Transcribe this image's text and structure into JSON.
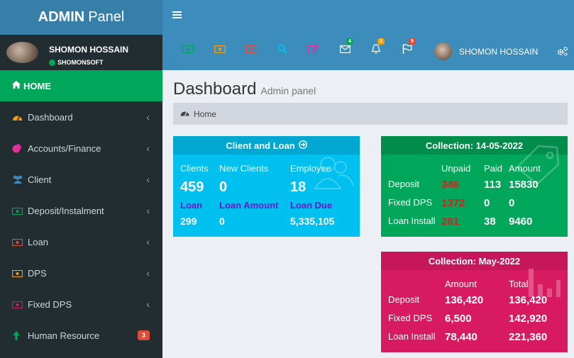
{
  "app": {
    "brand_bold": "ADMIN",
    "brand_light": "Panel"
  },
  "user": {
    "name": "SHOMON HOSSAIN",
    "status": "SHOMONSOFT"
  },
  "sidebar": {
    "home_label": "HOME",
    "items": [
      {
        "label": "Dashboard",
        "icon": "dashboard-icon",
        "color": "#f39c12"
      },
      {
        "label": "Accounts/Finance",
        "icon": "pie-chart-icon",
        "color": "#e62ea0"
      },
      {
        "label": "Client",
        "icon": "users-icon",
        "color": "#3c8dbc"
      },
      {
        "label": "Deposit/Instalment",
        "icon": "money-icon",
        "color": "#00a65a"
      },
      {
        "label": "Loan",
        "icon": "money-icon",
        "color": "#dd4b39"
      },
      {
        "label": "DPS",
        "icon": "money-icon",
        "color": "#f39c12"
      },
      {
        "label": "Fixed DPS",
        "icon": "money-icon",
        "color": "#d81b60"
      },
      {
        "label": "Human Resource",
        "icon": "arrow-up-icon",
        "color": "#00a65a",
        "badge": "3"
      }
    ]
  },
  "header": {
    "user_name": "SHOMON HOSSAIN",
    "icons": [
      {
        "name": "money-green-icon",
        "color": "#00a65a"
      },
      {
        "name": "money-orange-icon",
        "color": "#f39c12"
      },
      {
        "name": "money-red-icon",
        "color": "#dd4b39"
      },
      {
        "name": "search-icon",
        "color": "#00c0ef"
      },
      {
        "name": "edit-icon",
        "color": "#e62ea0"
      },
      {
        "name": "envelope-icon",
        "color": "#ffffff",
        "badge": "4",
        "badge_color": "#00a65a"
      },
      {
        "name": "bell-icon",
        "color": "#ffffff",
        "badge": "2",
        "badge_color": "#f39c12"
      },
      {
        "name": "flag-icon",
        "color": "#ffffff",
        "badge": "9",
        "badge_color": "#dd4b39"
      }
    ]
  },
  "page": {
    "title": "Dashboard",
    "subtitle": "Admin panel",
    "breadcrumb": "Home"
  },
  "client_loan": {
    "title": "Client and Loan",
    "labels": [
      "Clients",
      "New Clients",
      "Employee"
    ],
    "values": [
      "459",
      "0",
      "18"
    ],
    "labels2": [
      "Loan",
      "Loan Amount",
      "Loan Due"
    ],
    "values2": [
      "299",
      "0",
      "5,335,105"
    ]
  },
  "collection_day": {
    "title": "Collection: 14-05-2022",
    "headers": [
      "Unpaid",
      "Paid",
      "Amount"
    ],
    "rows": [
      {
        "label": "Deposit",
        "unpaid": "346",
        "paid": "113",
        "amount": "15830"
      },
      {
        "label": "Fixed DPS",
        "unpaid": "1372",
        "paid": "0",
        "amount": "0"
      },
      {
        "label": "Loan Install",
        "unpaid": "261",
        "paid": "38",
        "amount": "9460"
      }
    ]
  },
  "collection_month": {
    "title": "Collection: May-2022",
    "headers": [
      "Amount",
      "Total"
    ],
    "rows": [
      {
        "label": "Deposit",
        "amount": "136,420",
        "total": "136,420"
      },
      {
        "label": "Fixed DPS",
        "amount": "6,500",
        "total": "142,920"
      },
      {
        "label": "Loan Install",
        "amount": "78,440",
        "total": "221,360"
      }
    ]
  }
}
